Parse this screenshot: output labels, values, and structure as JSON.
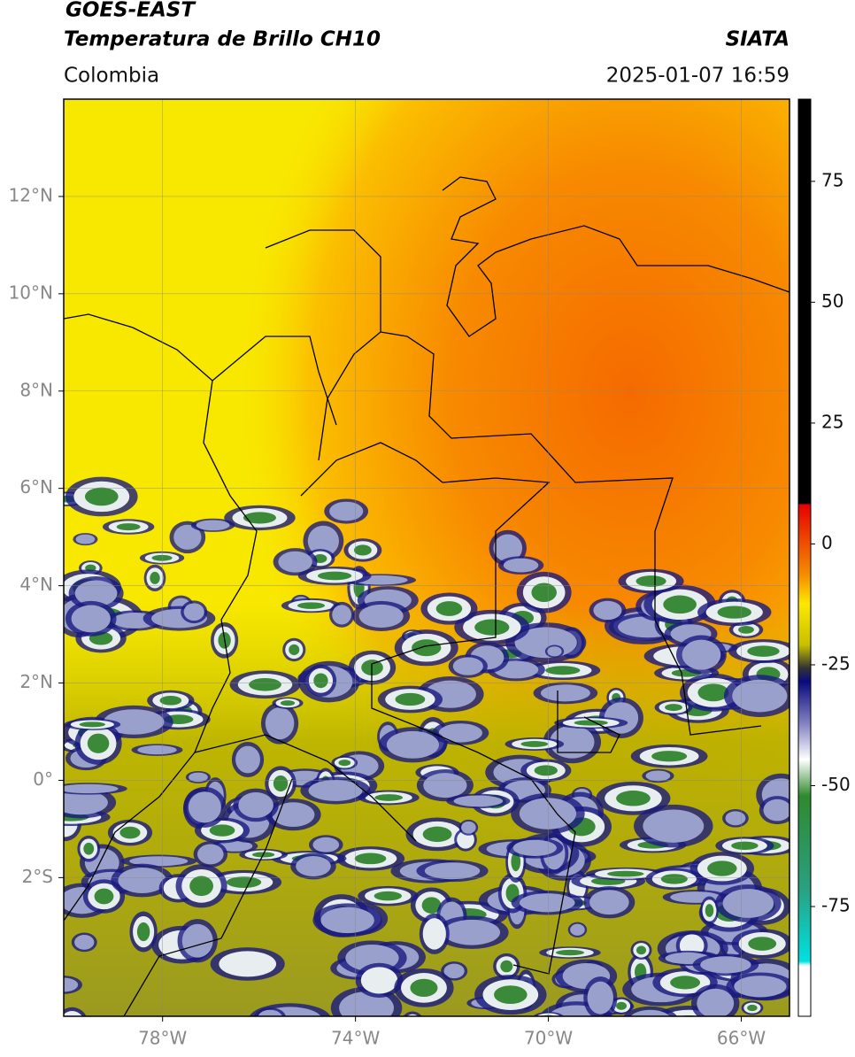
{
  "header": {
    "source": "GOES-EAST",
    "product": "Temperatura de Brillo CH10",
    "agency": "SIATA",
    "region": "Colombia",
    "datetime": "2025-01-07 16:59"
  },
  "map": {
    "xlim": [
      -80.05,
      -65
    ],
    "ylim": [
      -4.85,
      14
    ],
    "lon_ticks": [
      {
        "value": -78,
        "label": "78°W"
      },
      {
        "value": -74,
        "label": "74°W"
      },
      {
        "value": -70,
        "label": "70°W"
      },
      {
        "value": -66,
        "label": "66°W"
      }
    ],
    "lat_ticks": [
      {
        "value": 12,
        "label": "12°N"
      },
      {
        "value": 10,
        "label": "10°N"
      },
      {
        "value": 8,
        "label": "8°N"
      },
      {
        "value": 6,
        "label": "6°N"
      },
      {
        "value": 4,
        "label": "4°N"
      },
      {
        "value": 2,
        "label": "2°N"
      },
      {
        "value": 0,
        "label": "0°"
      },
      {
        "value": -2,
        "label": "2°S"
      }
    ],
    "grid": true
  },
  "colorbar": {
    "lim": [
      -97.7,
      92
    ],
    "ticks": [
      75,
      50,
      25,
      0,
      -25,
      -50,
      -75
    ]
  }
}
